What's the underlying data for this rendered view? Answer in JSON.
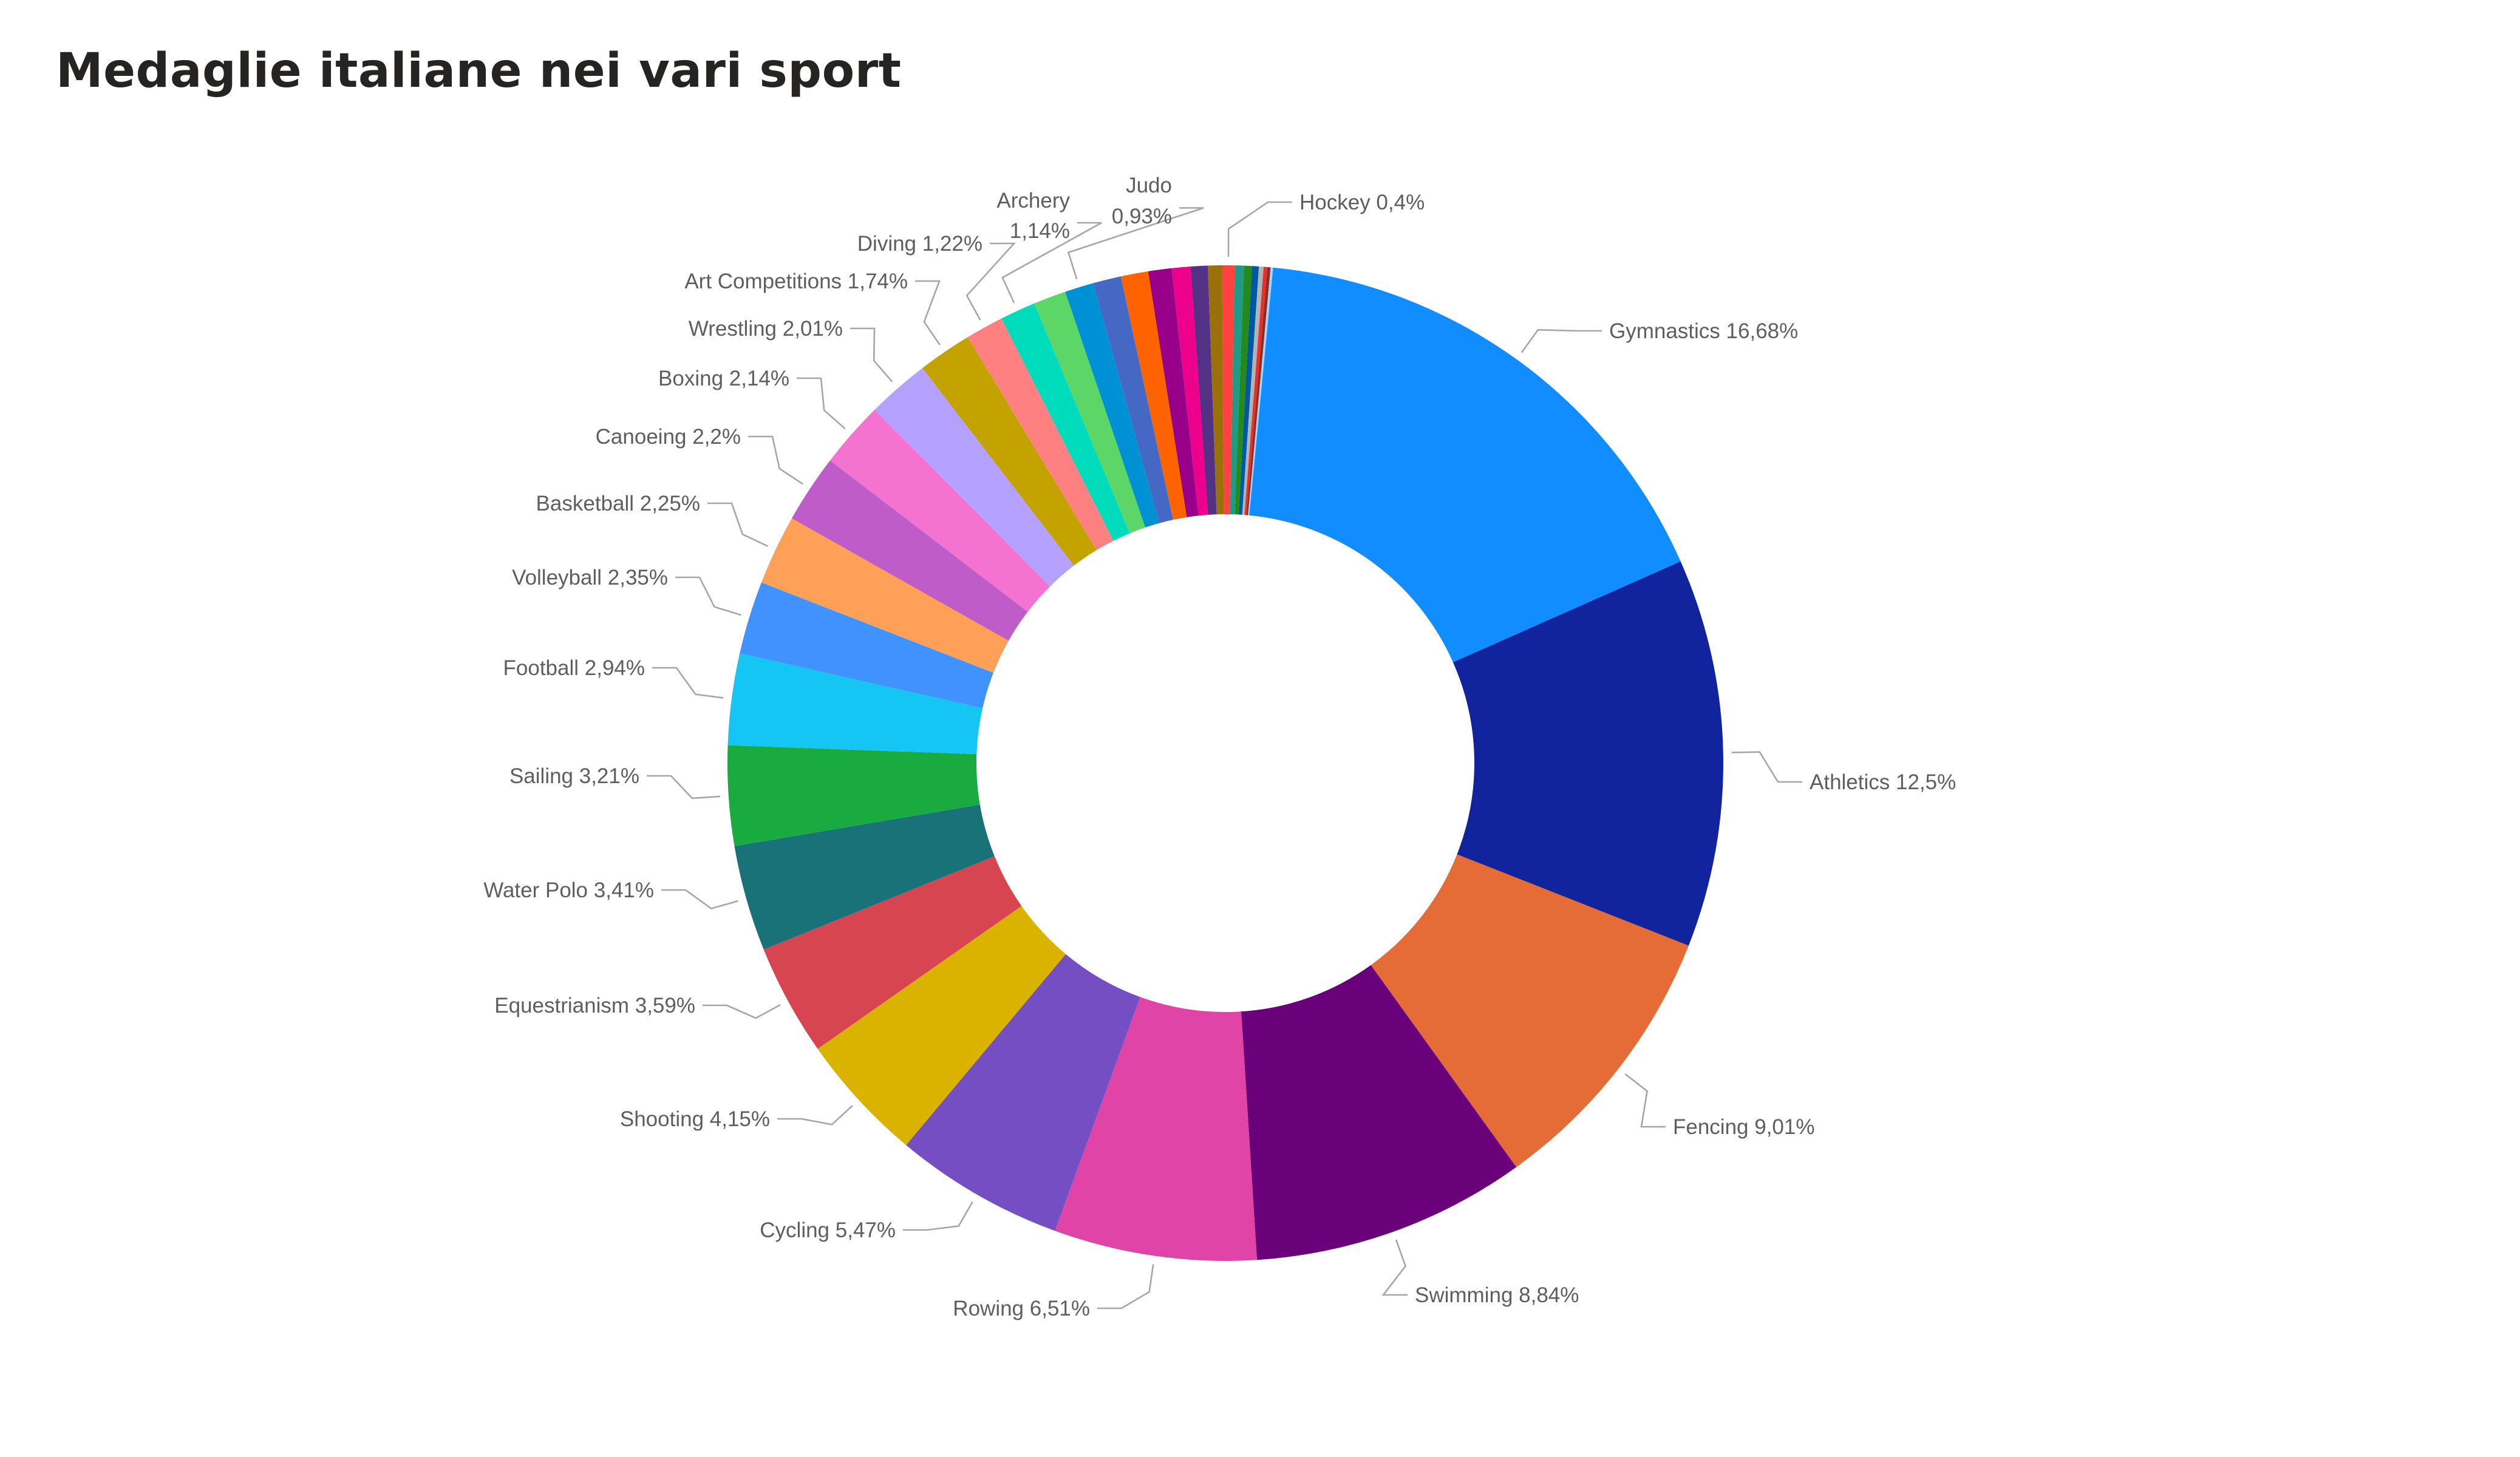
{
  "chart_data": {
    "type": "pie",
    "variant": "donut",
    "title": "Medaglie italiane nei vari sport",
    "legend": "none",
    "slices": [
      {
        "label": "Gymnastics",
        "text": "Gymnastics 16,68%",
        "value": 16.68,
        "color": "#118DFF"
      },
      {
        "label": "Athletics",
        "text": "Athletics 12,5%",
        "value": 12.5,
        "color": "#12239E"
      },
      {
        "label": "Fencing",
        "text": "Fencing 9,01%",
        "value": 9.01,
        "color": "#E66C37"
      },
      {
        "label": "Swimming",
        "text": "Swimming 8,84%",
        "value": 8.84,
        "color": "#6B007B"
      },
      {
        "label": "Rowing",
        "text": "Rowing 6,51%",
        "value": 6.51,
        "color": "#E044A7"
      },
      {
        "label": "Cycling",
        "text": "Cycling 5,47%",
        "value": 5.47,
        "color": "#744EC2"
      },
      {
        "label": "Shooting",
        "text": "Shooting 4,15%",
        "value": 4.15,
        "color": "#D9B300"
      },
      {
        "label": "Equestrianism",
        "text": "Equestrianism 3,59%",
        "value": 3.59,
        "color": "#D64550"
      },
      {
        "label": "Water Polo",
        "text": "Water Polo 3,41%",
        "value": 3.41,
        "color": "#197278"
      },
      {
        "label": "Sailing",
        "text": "Sailing 3,21%",
        "value": 3.21,
        "color": "#1AAB40"
      },
      {
        "label": "Football",
        "text": "Football 2,94%",
        "value": 2.94,
        "color": "#15C6F4"
      },
      {
        "label": "Volleyball",
        "text": "Volleyball 2,35%",
        "value": 2.35,
        "color": "#4092FF"
      },
      {
        "label": "Basketball",
        "text": "Basketball 2,25%",
        "value": 2.25,
        "color": "#FFA058"
      },
      {
        "label": "Canoeing",
        "text": "Canoeing 2,2%",
        "value": 2.2,
        "color": "#BE5DC9"
      },
      {
        "label": "Boxing",
        "text": "Boxing 2,14%",
        "value": 2.14,
        "color": "#F472D0"
      },
      {
        "label": "Wrestling",
        "text": "Wrestling 2,01%",
        "value": 2.01,
        "color": "#B5A1FF"
      },
      {
        "label": "Art Competitions",
        "text": "Art Competitions 1,74%",
        "value": 1.74,
        "color": "#C4A200"
      },
      {
        "label": "Diving",
        "text": "Diving 1,22%",
        "value": 1.22,
        "color": "#FF8080"
      },
      {
        "label": "Archery",
        "text": "Archery 1,14%",
        "lines": [
          "Archery",
          "1,14%"
        ],
        "value": 1.14,
        "color": "#00DBBC"
      },
      {
        "label": "",
        "text": "",
        "value": 1.05,
        "color": "#5BD667"
      },
      {
        "label": "Judo",
        "text": "Judo 0,93%",
        "lines": [
          "Judo",
          "0,93%"
        ],
        "value": 0.93,
        "color": "#0091D5"
      },
      {
        "label": "",
        "text": "",
        "value": 0.9,
        "color": "#4668C5"
      },
      {
        "label": "",
        "text": "",
        "value": 0.88,
        "color": "#FF6300"
      },
      {
        "label": "",
        "text": "",
        "value": 0.75,
        "color": "#99008A"
      },
      {
        "label": "",
        "text": "",
        "value": 0.6,
        "color": "#EC008C"
      },
      {
        "label": "",
        "text": "",
        "value": 0.55,
        "color": "#533285"
      },
      {
        "label": "",
        "text": "",
        "value": 0.45,
        "color": "#99700A"
      },
      {
        "label": "Hockey",
        "text": "Hockey 0,4%",
        "value": 0.4,
        "color": "#FF4141"
      },
      {
        "label": "",
        "text": "",
        "value": 0.3,
        "color": "#1F9A85"
      },
      {
        "label": "",
        "text": "",
        "value": 0.25,
        "color": "#25891C"
      },
      {
        "label": "",
        "text": "",
        "value": 0.22,
        "color": "#0057A2"
      },
      {
        "label": "",
        "text": "",
        "value": 0.15,
        "color": "#B3B3B3"
      },
      {
        "label": "",
        "text": "",
        "value": 0.12,
        "color": "#E82F2F"
      },
      {
        "label": "",
        "text": "",
        "value": 0.1,
        "color": "#8A2F20"
      },
      {
        "label": "",
        "text": "",
        "value": 0.08,
        "color": "#A0D1FF"
      }
    ]
  }
}
